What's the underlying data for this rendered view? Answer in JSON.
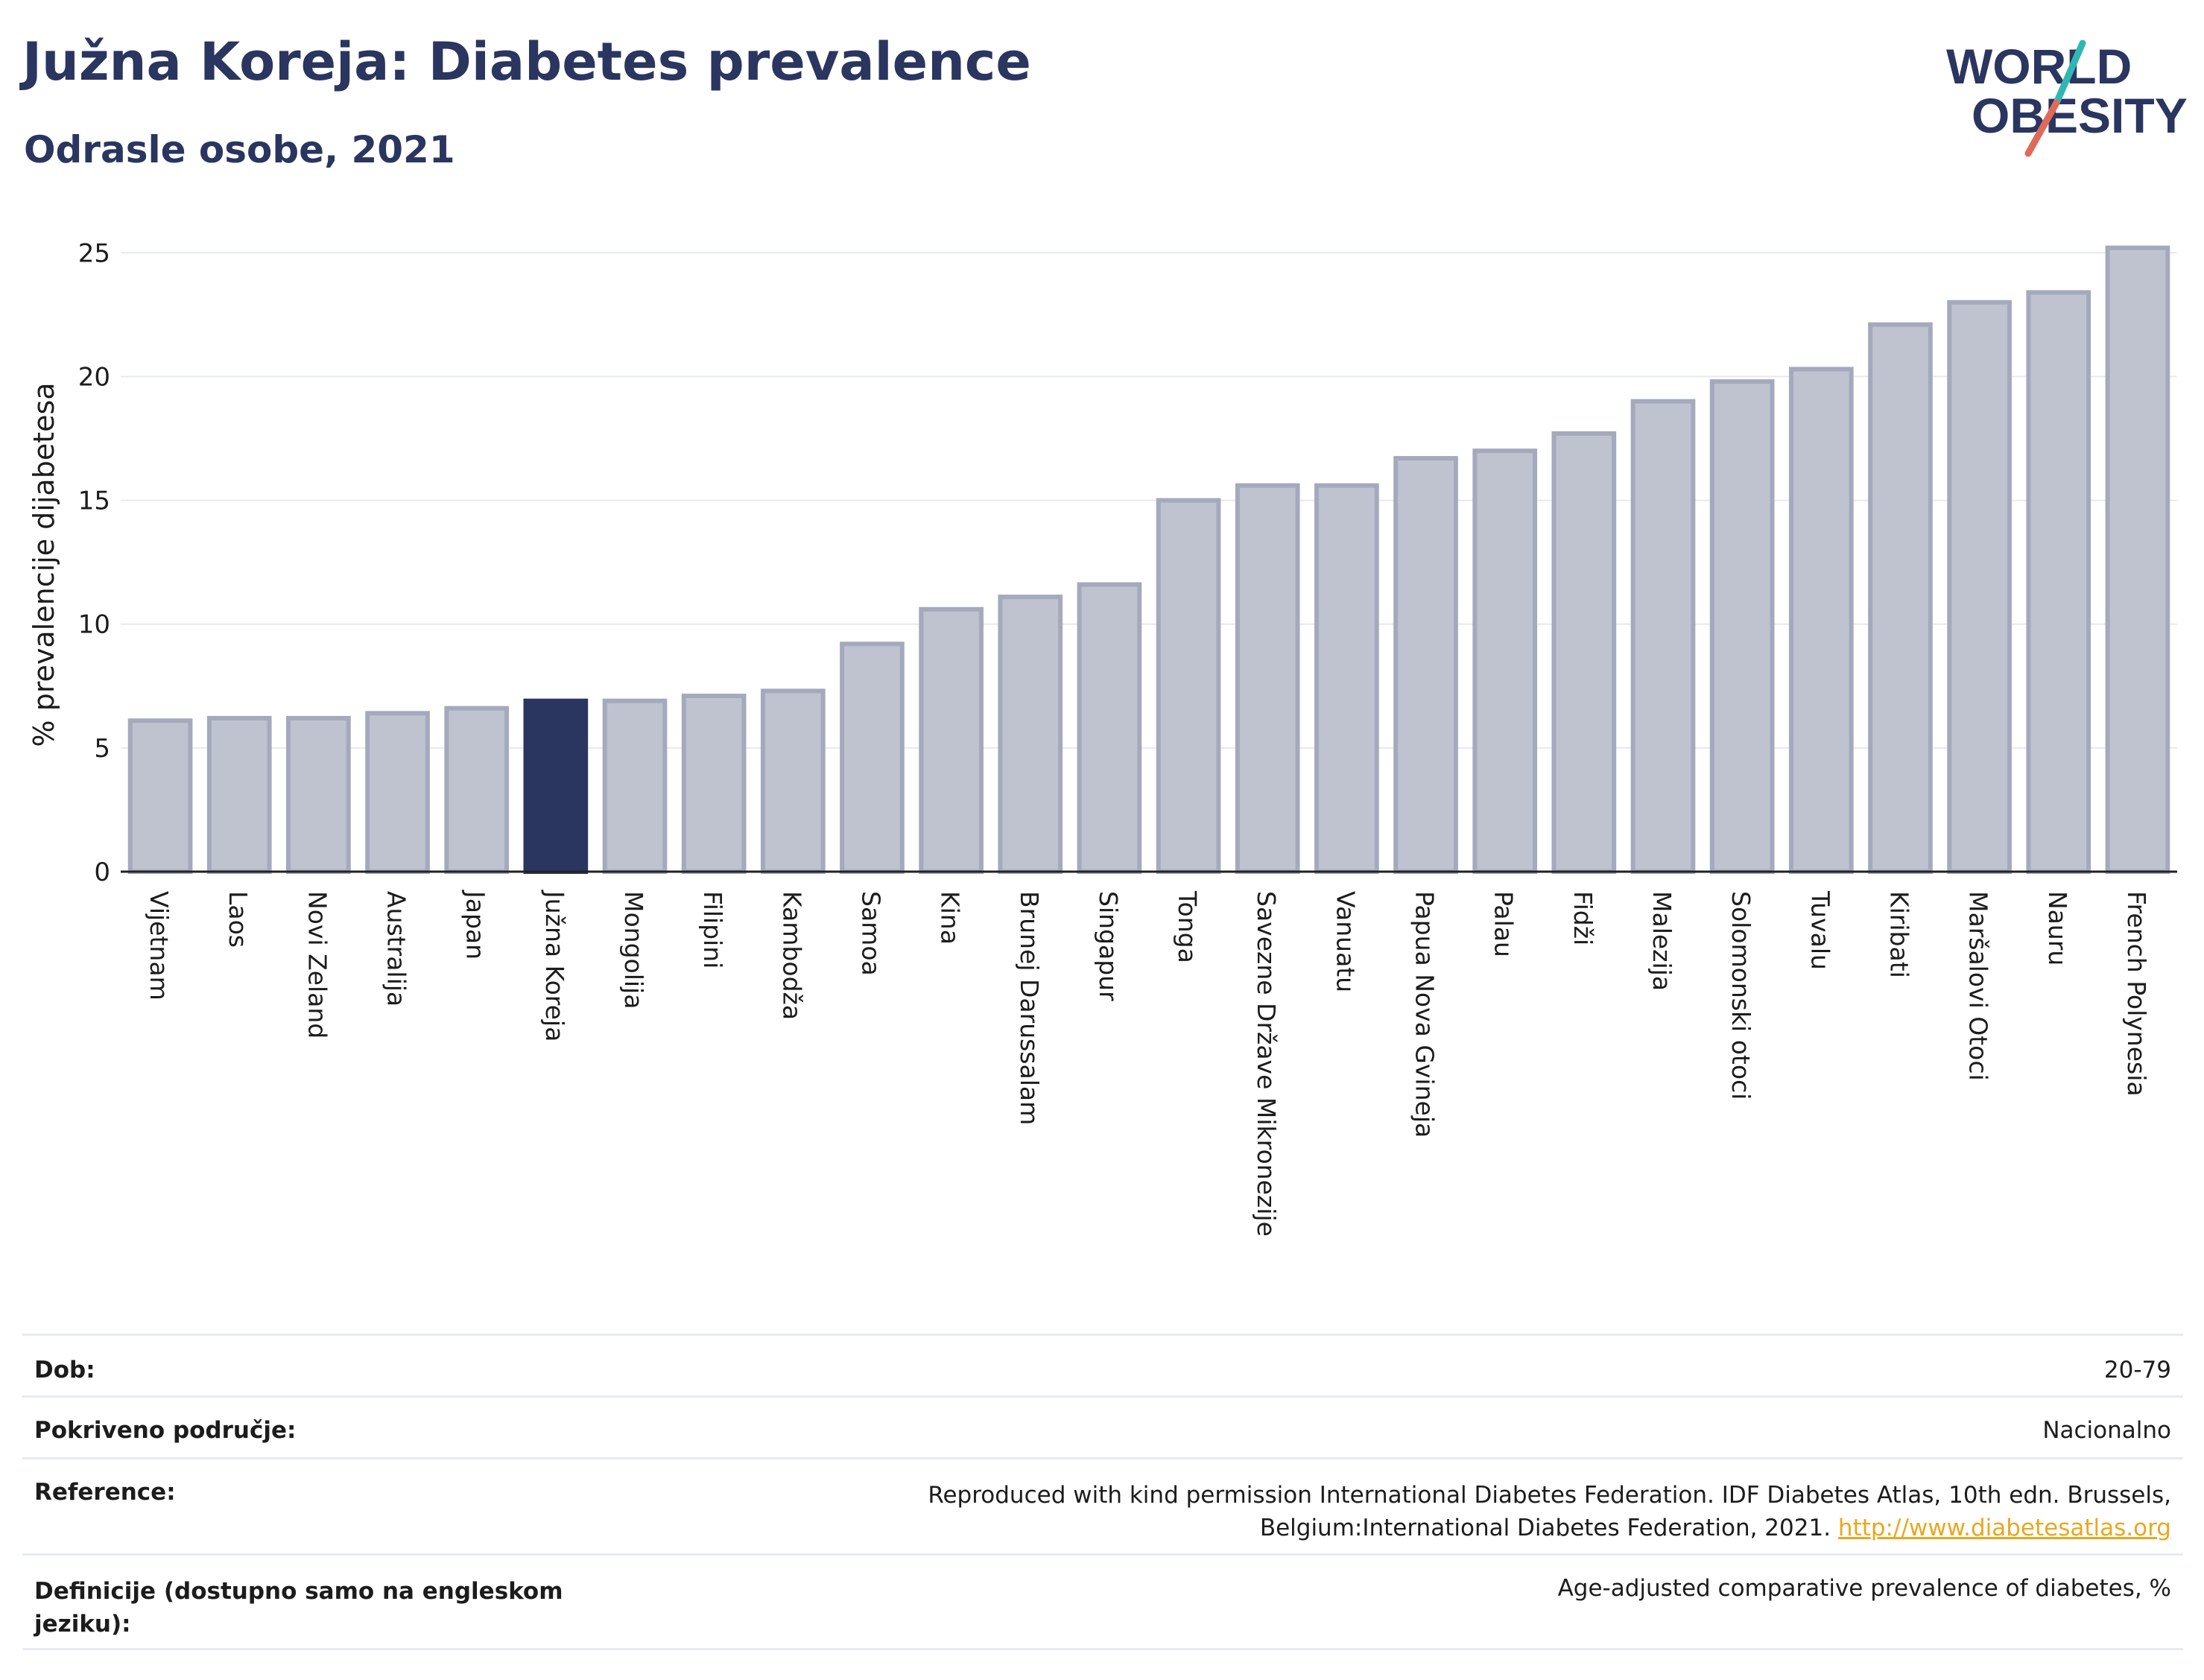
{
  "header": {
    "title": "Južna Koreja: Diabetes prevalence",
    "subtitle": "Odrasle osobe, 2021"
  },
  "logo": {
    "line1": "WORLD",
    "line2": "OBESITY"
  },
  "chart_data": {
    "type": "bar",
    "ylabel": "% prevalencije dijabetesa",
    "ylim": [
      0,
      25
    ],
    "yticks": [
      0,
      5,
      10,
      15,
      20,
      25
    ],
    "grid": true,
    "highlight": "Južna Koreja",
    "categories": [
      "Vijetnam",
      "Laos",
      "Novi Zeland",
      "Australija",
      "Japan",
      "Južna Koreja",
      "Mongolija",
      "Filipini",
      "Kambodža",
      "Samoa",
      "Kina",
      "Brunej Darussalam",
      "Singapur",
      "Tonga",
      "Savezne Države Mikronezije",
      "Vanuatu",
      "Papua Nova Gvineja",
      "Palau",
      "Fidži",
      "Malezija",
      "Solomonski otoci",
      "Tuvalu",
      "Kiribati",
      "Maršalovi Otoci",
      "Nauru",
      "French Polynesia"
    ],
    "values": [
      6.1,
      6.2,
      6.2,
      6.4,
      6.6,
      6.9,
      6.9,
      7.1,
      7.3,
      9.2,
      10.6,
      11.1,
      11.6,
      15.0,
      15.6,
      15.6,
      16.7,
      17.0,
      17.7,
      19.0,
      19.8,
      20.3,
      22.1,
      23.0,
      23.4,
      25.2
    ],
    "colors": {
      "bar": "#bfc3cf",
      "bar_edge": "#a4a9bd",
      "highlight": "#2a3560"
    }
  },
  "info_table": {
    "dob_label": "Dob:",
    "dob_value": "20-79",
    "coverage_label": "Pokriveno područje:",
    "coverage_value": "Nacionalno",
    "reference_label": "Reference:",
    "reference_text": "Reproduced with kind permission International Diabetes Federation.  IDF Diabetes Atlas, 10th edn. Brussels, Belgium:International Diabetes Federation, 2021.",
    "reference_link": "http://www.diabetesatlas.org",
    "definition_label": "Definicije (dostupno samo na engleskom jeziku):",
    "definition_value": "Age-adjusted comparative prevalence of diabetes, %"
  }
}
